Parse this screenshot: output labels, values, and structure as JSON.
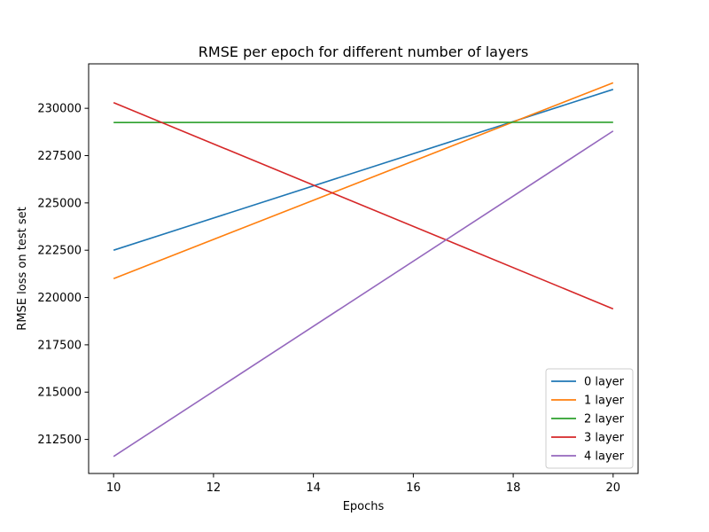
{
  "chart_data": {
    "type": "line",
    "title": "RMSE per epoch for different number of layers",
    "xlabel": "Epochs",
    "ylabel": "RMSE loss on test set",
    "xlim": [
      9.5,
      20.5
    ],
    "ylim": [
      210700,
      232350
    ],
    "xticks": [
      10,
      12,
      14,
      16,
      18,
      20
    ],
    "yticks": [
      212500,
      215000,
      217500,
      220000,
      222500,
      225000,
      227500,
      230000
    ],
    "grid": false,
    "legend_position": "lower-right",
    "series": [
      {
        "name": "0 layer",
        "color": "#1f77b4",
        "x": [
          10,
          20
        ],
        "y": [
          222500,
          231000
        ]
      },
      {
        "name": "1 layer",
        "color": "#ff7f0e",
        "x": [
          10,
          20
        ],
        "y": [
          221000,
          231350
        ]
      },
      {
        "name": "2 layer",
        "color": "#2ca02c",
        "x": [
          10,
          20
        ],
        "y": [
          229250,
          229260
        ]
      },
      {
        "name": "3 layer",
        "color": "#d62728",
        "x": [
          10,
          20
        ],
        "y": [
          230300,
          219400
        ]
      },
      {
        "name": "4 layer",
        "color": "#9467bd",
        "x": [
          10,
          20
        ],
        "y": [
          211600,
          228800
        ]
      }
    ]
  }
}
